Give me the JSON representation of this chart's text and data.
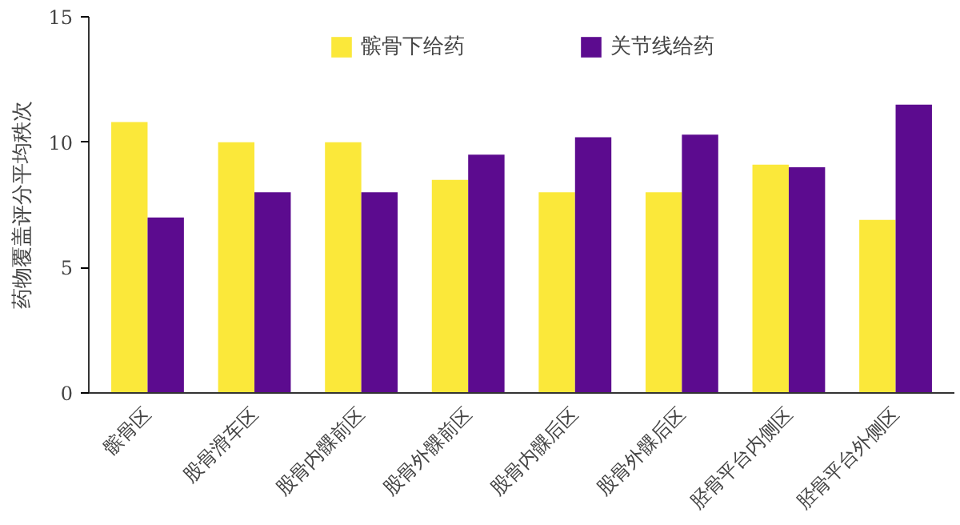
{
  "chart_data": {
    "type": "bar",
    "ylabel": "药物覆盖评分平均秩次",
    "categories": [
      "髌骨区",
      "股骨滑车区",
      "股骨内髁前区",
      "股骨外髁前区",
      "股骨内髁后区",
      "股骨外髁后区",
      "胫骨平台内侧区",
      "胫骨平台外侧区"
    ],
    "series": [
      {
        "name": "髌骨下给药",
        "color": "#fbe83a",
        "values": [
          10.8,
          10.0,
          10.0,
          8.5,
          8.0,
          8.0,
          9.1,
          6.9
        ]
      },
      {
        "name": "关节线给药",
        "color": "#5c0b8f",
        "values": [
          7.0,
          8.0,
          8.0,
          9.5,
          10.2,
          10.3,
          9.0,
          11.5
        ]
      }
    ],
    "ylim": [
      0,
      15
    ],
    "yticks": [
      0,
      5,
      10,
      15
    ],
    "grid": false,
    "legend": "top"
  }
}
